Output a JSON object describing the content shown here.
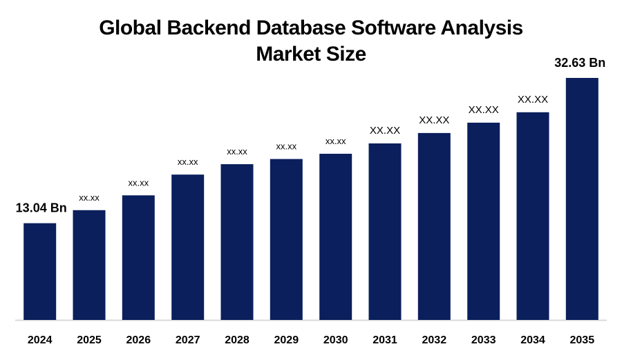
{
  "chart_data": {
    "type": "bar",
    "title_line1": "Global Backend Database Software Analysis",
    "title_line2": "Market Size",
    "categories": [
      "2024",
      "2025",
      "2026",
      "2027",
      "2028",
      "2029",
      "2030",
      "2031",
      "2032",
      "2033",
      "2034",
      "2035"
    ],
    "values": [
      13.04,
      14.8,
      16.8,
      19.6,
      21.0,
      21.7,
      22.4,
      23.8,
      25.2,
      26.6,
      28.0,
      32.63
    ],
    "data_labels": [
      "13.04 Bn",
      "xx.xx",
      "xx.xx",
      "xx.xx",
      "xx.xx",
      "xx.xx",
      "xx.xx",
      "XX.XX",
      "XX.XX",
      "XX.XX",
      "XX.XX",
      "32.63 Bn"
    ],
    "xlabel": "",
    "ylabel": "",
    "ylim": [
      0,
      36
    ],
    "grid": false,
    "bar_color": "#0a1f5c",
    "baseline_color": "#d9d9d9"
  }
}
